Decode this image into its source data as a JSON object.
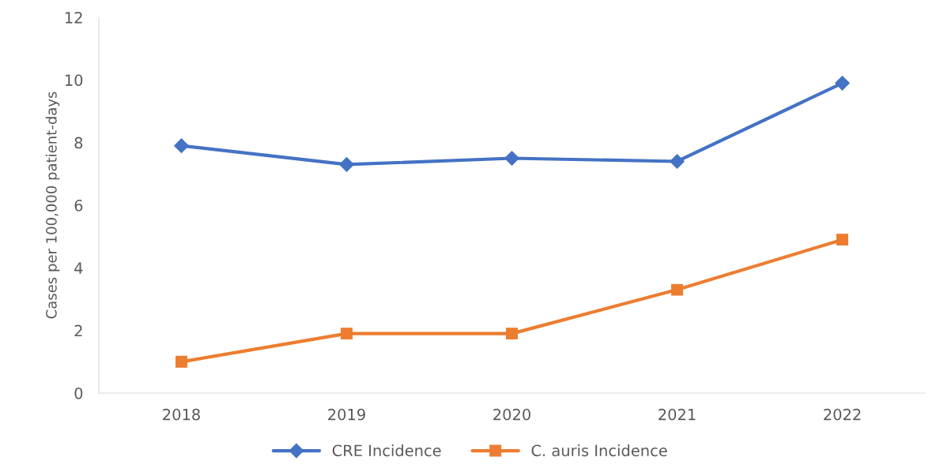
{
  "chart_data": {
    "type": "line",
    "ylabel": "Cases per 100,000 patient-days",
    "categories": [
      "2018",
      "2019",
      "2020",
      "2021",
      "2022"
    ],
    "series": [
      {
        "name": "CRE Incidence",
        "color": "#4472c4",
        "marker": "diamond",
        "values": [
          7.9,
          7.3,
          7.5,
          7.4,
          9.9
        ]
      },
      {
        "name": "C. auris Incidence",
        "color": "#ed7d31",
        "marker": "square",
        "values": [
          1.0,
          1.9,
          1.9,
          3.3,
          4.9
        ]
      }
    ],
    "ylim": [
      0,
      12
    ],
    "yticks": [
      0,
      2,
      4,
      6,
      8,
      10,
      12
    ],
    "grid": false,
    "legend": "bottom",
    "line_style": "solid"
  }
}
